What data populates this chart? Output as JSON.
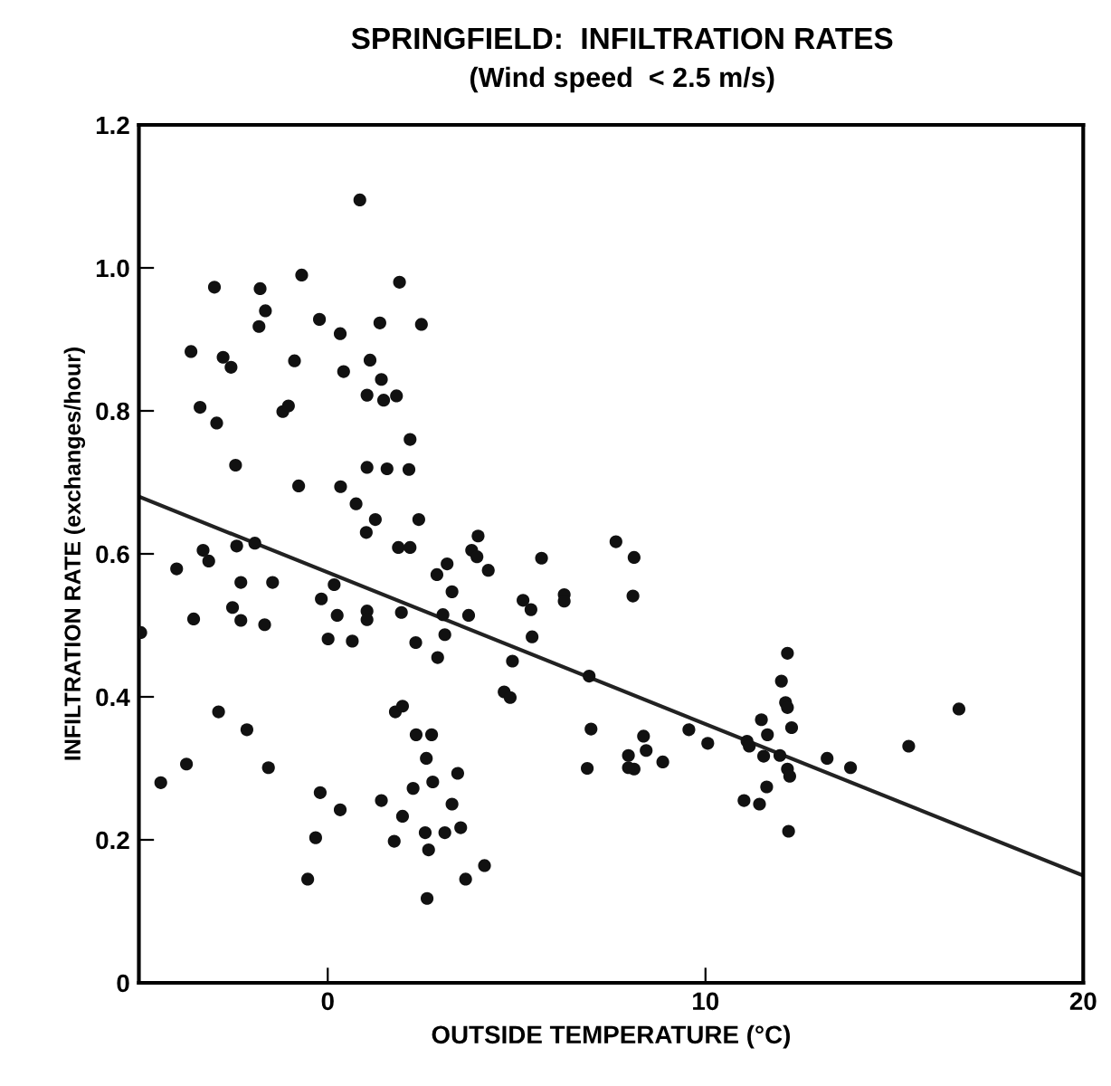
{
  "chart_data": {
    "type": "scatter",
    "title": "SPRINGFIELD:  INFILTRATION RATES",
    "subtitle": "(Wind speed  < 2.5 m/s)",
    "xlabel": "OUTSIDE TEMPERATURE (°C)",
    "ylabel": "INFILTRATION RATE (exchanges/hour)",
    "xlim": [
      -5,
      20
    ],
    "ylim": [
      0,
      1.2
    ],
    "xticks": [
      0,
      10,
      20
    ],
    "yticks": [
      0,
      0.2,
      0.4,
      0.6,
      0.8,
      {
        "value": 1,
        "label": "1.0"
      },
      1.2
    ],
    "grid": false,
    "legend": false,
    "marker": "circle",
    "series": [
      {
        "color": "#111111",
        "x": [
          0.85,
          -3.0,
          -1.79,
          -0.69,
          1.9,
          -1.65,
          -1.82,
          -0.22,
          0.33,
          1.38,
          2.48,
          -3.62,
          -2.77,
          -2.56,
          -0.88,
          1.12,
          0.42,
          1.42,
          1.04,
          1.48,
          1.82,
          -3.38,
          -2.94,
          -1.19,
          -1.04,
          2.18,
          -2.44,
          1.04,
          1.57,
          2.15,
          -0.77,
          0.34,
          0.75,
          1.26,
          2.41,
          1.02,
          3.98,
          -3.3,
          -3.15,
          -2.41,
          -1.93,
          -4.0,
          -2.3,
          -1.46,
          -2.52,
          -2.3,
          -1.67,
          -3.55,
          -0.17,
          0.17,
          0.25,
          1.04,
          1.04,
          1.87,
          2.18,
          1.95,
          0.01,
          0.65,
          2.89,
          3.16,
          3.29,
          3.05,
          3.73,
          2.33,
          3.1,
          2.91,
          3.81,
          3.95,
          4.25,
          5.17,
          5.38,
          5.41,
          4.89,
          4.67,
          4.83,
          1.79,
          1.98,
          -2.89,
          -2.14,
          2.34,
          2.75,
          -3.74,
          -1.57,
          -4.42,
          2.61,
          3.44,
          2.78,
          2.26,
          -0.2,
          3.29,
          1.42,
          0.33,
          1.98,
          3.52,
          2.58,
          3.1,
          -0.32,
          1.76,
          2.67,
          4.15,
          3.65,
          -0.53,
          2.63,
          5.66,
          7.63,
          8.11,
          6.26,
          6.26,
          8.08,
          6.92,
          6.97,
          6.87,
          8.36,
          8.43,
          7.96,
          8.11,
          7.96,
          8.87,
          9.56,
          10.06,
          11.48,
          11.64,
          11.1,
          11.16,
          11.54,
          11.97,
          12.17,
          12.01,
          12.12,
          12.17,
          12.28,
          12.17,
          12.23,
          13.22,
          13.84,
          11.62,
          11.02,
          11.43,
          12.2,
          15.38,
          16.71,
          -4.95
        ],
        "values": [
          1.095,
          0.973,
          0.971,
          0.99,
          0.98,
          0.94,
          0.918,
          0.928,
          0.908,
          0.923,
          0.921,
          0.883,
          0.875,
          0.861,
          0.87,
          0.871,
          0.855,
          0.844,
          0.822,
          0.815,
          0.821,
          0.805,
          0.783,
          0.799,
          0.807,
          0.76,
          0.724,
          0.721,
          0.719,
          0.718,
          0.695,
          0.694,
          0.67,
          0.648,
          0.648,
          0.63,
          0.625,
          0.605,
          0.59,
          0.611,
          0.615,
          0.579,
          0.56,
          0.56,
          0.525,
          0.507,
          0.501,
          0.509,
          0.537,
          0.557,
          0.514,
          0.52,
          0.508,
          0.609,
          0.609,
          0.518,
          0.481,
          0.478,
          0.571,
          0.586,
          0.547,
          0.515,
          0.514,
          0.476,
          0.487,
          0.455,
          0.605,
          0.596,
          0.577,
          0.535,
          0.522,
          0.484,
          0.45,
          0.407,
          0.399,
          0.379,
          0.387,
          0.379,
          0.354,
          0.347,
          0.347,
          0.306,
          0.301,
          0.28,
          0.314,
          0.293,
          0.281,
          0.272,
          0.266,
          0.25,
          0.255,
          0.242,
          0.233,
          0.217,
          0.21,
          0.21,
          0.203,
          0.198,
          0.186,
          0.164,
          0.145,
          0.145,
          0.118,
          0.594,
          0.617,
          0.595,
          0.543,
          0.534,
          0.541,
          0.429,
          0.355,
          0.3,
          0.345,
          0.325,
          0.318,
          0.299,
          0.301,
          0.309,
          0.354,
          0.335,
          0.368,
          0.347,
          0.338,
          0.331,
          0.317,
          0.318,
          0.461,
          0.422,
          0.392,
          0.385,
          0.357,
          0.299,
          0.289,
          0.314,
          0.301,
          0.274,
          0.255,
          0.25,
          0.212,
          0.331,
          0.383,
          0.49
        ]
      },
      {
        "type": "line",
        "color": "#222222",
        "x": [
          -5,
          20
        ],
        "values": [
          0.68,
          0.15
        ],
        "marker": "none",
        "line_style": "solid"
      }
    ]
  }
}
